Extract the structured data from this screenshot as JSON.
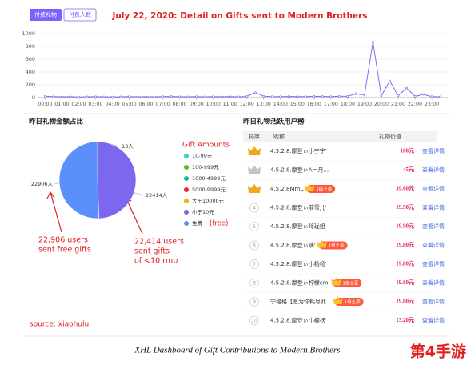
{
  "header": {
    "buttons": [
      "付费礼物",
      "付费人数"
    ],
    "title": "July 22, 2020:  Detail on Gifts sent to Modern Brothers"
  },
  "chart_data": [
    {
      "type": "line",
      "color": "#7b6ef6",
      "grid": true,
      "x": [
        0,
        0.5,
        1,
        1.5,
        2,
        2.5,
        3,
        3.5,
        4,
        4.5,
        5,
        5.5,
        6,
        6.5,
        7,
        7.5,
        8,
        8.5,
        9,
        9.5,
        10,
        10.5,
        11,
        11.5,
        12,
        12.5,
        13,
        13.5,
        14,
        14.5,
        15,
        15.5,
        16,
        16.5,
        17,
        17.5,
        18,
        18.5,
        19,
        19.5,
        20,
        20.5,
        21,
        21.5,
        22,
        22.5,
        23,
        23.5
      ],
      "values": [
        20,
        15,
        12,
        14,
        10,
        12,
        14,
        12,
        10,
        12,
        15,
        12,
        14,
        12,
        15,
        18,
        14,
        12,
        15,
        12,
        16,
        14,
        15,
        12,
        18,
        80,
        20,
        16,
        15,
        18,
        16,
        15,
        20,
        18,
        16,
        20,
        22,
        60,
        40,
        870,
        30,
        260,
        30,
        150,
        20,
        50,
        15,
        12
      ],
      "xlim": [
        -0.4,
        23.95
      ],
      "ylim": [
        0,
        1000
      ],
      "yticks": [
        0,
        200,
        400,
        600,
        800,
        1000
      ],
      "xticks": [
        {
          "value": 0,
          "label": "00:00"
        },
        {
          "value": 1,
          "label": "01:00"
        },
        {
          "value": 2,
          "label": "02:00"
        },
        {
          "value": 3,
          "label": "03:00"
        },
        {
          "value": 4,
          "label": "04:00"
        },
        {
          "value": 5,
          "label": "05:00"
        },
        {
          "value": 6,
          "label": "06:00"
        },
        {
          "value": 7,
          "label": "07:00"
        },
        {
          "value": 8,
          "label": "08:00"
        },
        {
          "value": 9,
          "label": "09:00"
        },
        {
          "value": 10,
          "label": "10:00"
        },
        {
          "value": 11,
          "label": "11:00"
        },
        {
          "value": 12,
          "label": "12:00"
        },
        {
          "value": 13,
          "label": "13:00"
        },
        {
          "value": 14,
          "label": "14:00"
        },
        {
          "value": 15,
          "label": "15:00"
        },
        {
          "value": 16,
          "label": "16:00"
        },
        {
          "value": 17,
          "label": "17:00"
        },
        {
          "value": 18,
          "label": "18:00"
        },
        {
          "value": 19,
          "label": "19:00"
        },
        {
          "value": 20,
          "label": "20:00"
        },
        {
          "value": 21,
          "label": "21:00"
        },
        {
          "value": 22,
          "label": "22:00"
        },
        {
          "value": 23,
          "label": "23:00"
        }
      ]
    },
    {
      "type": "pie",
      "title": "昨日礼物金额占比",
      "legend_title": "Gift Amounts",
      "categories": [
        "10-99元",
        "100-999元",
        "1000-4999元",
        "5000-9999元",
        "大于10000元",
        "小于10元",
        "免费"
      ],
      "colors": [
        "#36cfc9",
        "#52c41a",
        "#13b89a",
        "#f5222d",
        "#faad14",
        "#7b68ee",
        "#5b8ff9"
      ],
      "values": [
        13,
        null,
        null,
        null,
        null,
        22414,
        22906
      ],
      "value_labels": [
        "13人",
        null,
        null,
        null,
        null,
        "22414人",
        "22906人"
      ],
      "annotations": [
        "(free)",
        "22,906 users",
        "sent free gifts",
        "22,414 users",
        "sent gifts",
        "of <10 rmb"
      ]
    }
  ],
  "ranking": {
    "title": "昨日礼物活跃用户榜",
    "columns": [
      "排序",
      "昵称",
      "礼物价值"
    ],
    "rows": [
      {
        "rank": null,
        "name": "4.5.2.8.摩登ぃ小宁宁'",
        "badge": null,
        "value": "100元",
        "link": "查看详情"
      },
      {
        "rank": null,
        "name": "4.5.2.8.摩登ぃA一月...",
        "badge": null,
        "value": "45元",
        "link": "查看详情"
      },
      {
        "rank": null,
        "name": "4.5.2.8MmL",
        "badge": "1级土豪",
        "value": "39.60元",
        "link": "查看详情"
      },
      {
        "rank": "4",
        "name": "4.5.2.8.摩登ぃ菲雪儿'",
        "badge": null,
        "value": "19.90元",
        "link": "查看详情"
      },
      {
        "rank": "5",
        "name": "4.5.2.8.摩登ぃ玲珑姐",
        "badge": null,
        "value": "19.90元",
        "link": "查看详情"
      },
      {
        "rank": "6",
        "name": "4.5.2.8.摩登ぃ瑞'",
        "badge": "1级土豪",
        "value": "19.80元",
        "link": "查看详情"
      },
      {
        "rank": "7",
        "name": "4.5.2.8.摩登ぃ小杨杨'",
        "badge": null,
        "value": "19.80元",
        "link": "查看详情"
      },
      {
        "rank": "8",
        "name": "4.5.2.8.摩登ぃ柠檬cm'",
        "badge": "1级土豪",
        "value": "19.80元",
        "link": "查看详情"
      },
      {
        "rank": "9",
        "name": "宁格格【愿为你耗尽此...",
        "badge": "1级土豪",
        "value": "19.80元",
        "link": "查看详情"
      },
      {
        "rank": "10",
        "name": "4.5.2.8.摩登ぃ小楠袄'",
        "badge": null,
        "value": "13.20元",
        "link": "查看详情"
      }
    ]
  },
  "source": "source: xiaohulu",
  "caption": "XHL Dashboard of Gift Contributions to Modern Brothers",
  "watermark": "第4手游"
}
